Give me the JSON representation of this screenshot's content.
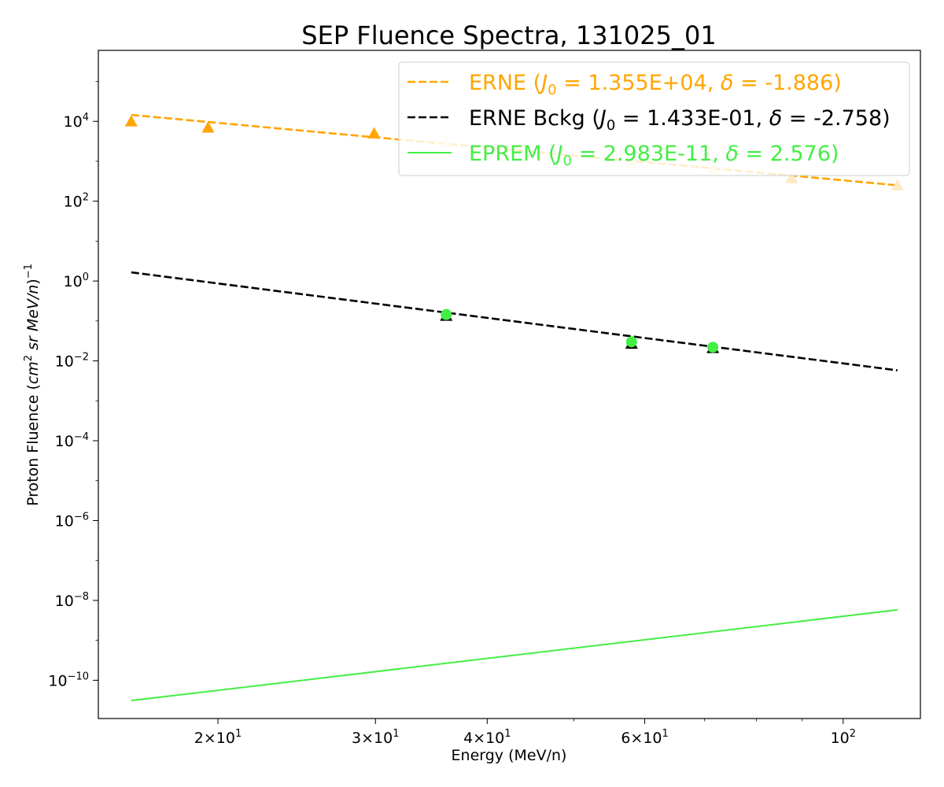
{
  "chart_data": {
    "type": "line",
    "title": "SEP Fluence Spectra, 131025_01",
    "xlabel": "Energy (MeV/n)",
    "ylabel": {
      "prefix": "Proton Fluence (",
      "unit_cm": "cm",
      "unit_cm_exp": "2",
      "unit_rest": " sr MeV/n",
      "suffix": ")",
      "suffix_exp": "−1"
    },
    "x_scale": "log",
    "y_scale": "log",
    "xlim": [
      14.7,
      122
    ],
    "ylim": [
      1.1e-11,
      600000.0
    ],
    "grid": false,
    "legend_position": "top-right",
    "x_ticks": [
      {
        "value": 20,
        "mantissa": "2×10",
        "exp": "1"
      },
      {
        "value": 30,
        "mantissa": "3×10",
        "exp": "1"
      },
      {
        "value": 40,
        "mantissa": "4×10",
        "exp": "1"
      },
      {
        "value": 60,
        "mantissa": "6×10",
        "exp": "1"
      },
      {
        "value": 100,
        "mantissa": "10",
        "exp": "2"
      }
    ],
    "y_ticks": [
      {
        "value": 10000.0,
        "mantissa": "10",
        "exp": "4"
      },
      {
        "value": 100.0,
        "mantissa": "10",
        "exp": "2"
      },
      {
        "value": 1,
        "mantissa": "10",
        "exp": "0"
      },
      {
        "value": 0.01,
        "mantissa": "10",
        "exp": "−2"
      },
      {
        "value": 0.0001,
        "mantissa": "10",
        "exp": "−4"
      },
      {
        "value": 1e-06,
        "mantissa": "10",
        "exp": "−6"
      },
      {
        "value": 1e-08,
        "mantissa": "10",
        "exp": "−8"
      },
      {
        "value": 1e-10,
        "mantissa": "10",
        "exp": "−10"
      }
    ],
    "series": [
      {
        "name": "ERNE",
        "kind": "fit-dashed",
        "color": "#ffa500",
        "legend": {
          "label": "ERNE (",
          "j0": "1.355E+04",
          "delta": "-1.886",
          "close": ")"
        },
        "x": [
          16.0,
          115.0
        ],
        "y": [
          14500,
          250
        ]
      },
      {
        "name": "ERNE Bckg",
        "kind": "fit-dashed",
        "color": "#000000",
        "legend": {
          "label": "ERNE Bckg (",
          "j0": "1.433E-01",
          "delta": "-2.758",
          "close": ")"
        },
        "x": [
          16.0,
          115.0
        ],
        "y": [
          1.65,
          0.0058
        ]
      },
      {
        "name": "EPREM",
        "kind": "line",
        "color": "#44ee44",
        "legend": {
          "label": "EPREM (",
          "j0": "2.983E-11",
          "delta": "2.576",
          "close": ")"
        },
        "x": [
          16.0,
          115.0
        ],
        "y": [
          3.1e-11,
          5.8e-09
        ]
      }
    ],
    "markers": [
      {
        "series": "ERNE",
        "shape": "triangle",
        "color": "#ffa500",
        "x": [
          16.0,
          19.5,
          29.9
        ],
        "y": [
          10000,
          7000,
          5000
        ]
      },
      {
        "series": "ERNE",
        "shape": "triangle",
        "color": "#ffe8c4",
        "x": [
          36.0,
          58.0,
          71.5,
          87.6,
          115.0
        ],
        "y": [
          3000,
          900,
          650,
          380,
          250
        ]
      },
      {
        "series": "ERNE Bckg",
        "shape": "triangle",
        "color": "#000000",
        "x": [
          36.0,
          58.0,
          71.5
        ],
        "y": [
          0.135,
          0.027,
          0.021
        ]
      },
      {
        "series": "EPREM",
        "shape": "circle",
        "color": "#44ee44",
        "x": [
          36.0,
          58.0,
          71.5
        ],
        "y": [
          0.145,
          0.03,
          0.022
        ]
      }
    ]
  }
}
